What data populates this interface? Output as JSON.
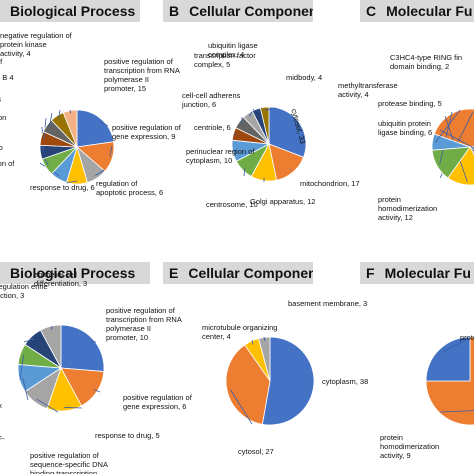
{
  "panels": [
    {
      "letter": "",
      "title": "Biological Process"
    },
    {
      "letter": "B",
      "title": "Cellular Component"
    },
    {
      "letter": "C",
      "title": "Molecular Fu"
    },
    {
      "letter": "",
      "title": "Biological Process"
    },
    {
      "letter": "E",
      "title": "Cellular Component"
    },
    {
      "letter": "F",
      "title": "Molecular Fu"
    }
  ],
  "colors": [
    "#4472c4",
    "#ed7d31",
    "#a5a5a5",
    "#ffc000",
    "#5b9bd5",
    "#70ad47",
    "#264478",
    "#9e480e",
    "#636363",
    "#997300",
    "#f4b183",
    "#9dc3e6"
  ],
  "chart_data": [
    {
      "type": "pie",
      "title": "Biological Process",
      "slices": [
        {
          "label": "positive regulation of transcription from RNA polymerase II promoter, 15",
          "value": 15
        },
        {
          "label": "positive regulation of gene expression, 9",
          "value": 9
        },
        {
          "label": "regulation of apoptotic process, 6",
          "value": 6
        },
        {
          "label": "response to drug, 6",
          "value": 6
        },
        {
          "label": "ion of",
          "value": 5
        },
        {
          "label": "io",
          "value": 5
        },
        {
          "label": "on",
          "value": 4
        },
        {
          "label": "4",
          "value": 4
        },
        {
          "label": "e B 4",
          "value": 4
        },
        {
          "label": "of",
          "value": 4
        },
        {
          "label": "negative regulation of protein kinase activity, 4",
          "value": 4
        }
      ]
    },
    {
      "type": "pie",
      "title": "Cellular Component",
      "slices": [
        {
          "label": "cytosol, 33",
          "value": 33
        },
        {
          "label": "mitochondrion, 17",
          "value": 17
        },
        {
          "label": "Golgi apparatus, 12",
          "value": 12
        },
        {
          "label": "centrosome, 10",
          "value": 10
        },
        {
          "label": "perinuclear region of cytoplasm, 10",
          "value": 10
        },
        {
          "label": "centriole, 6",
          "value": 6
        },
        {
          "label": "cell-cell adherens junction, 6",
          "value": 6
        },
        {
          "label": "transcription factor complex, 5",
          "value": 5
        },
        {
          "label": "ubiquitin ligase complex, 4",
          "value": 4
        },
        {
          "label": "midbody, 4",
          "value": 4
        }
      ]
    },
    {
      "type": "pie",
      "title": "Molecular Fu",
      "slices": [
        {
          "label": "protein homodimerization activity, 12",
          "value": 12
        },
        {
          "label": "ubiquitin protein ligase binding, 6",
          "value": 6
        },
        {
          "label": "protease binding, 5",
          "value": 5
        },
        {
          "label": "methyltransferase activity, 4",
          "value": 4
        },
        {
          "label": "C3HC4-type RING fin domain binding, 2",
          "value": 2
        }
      ]
    },
    {
      "type": "pie",
      "title": "Biological Process",
      "slices": [
        {
          "label": "positive regulation of transcription from RNA polymerase II promoter, 10",
          "value": 10
        },
        {
          "label": "positive regulation of gene expression, 6",
          "value": 6
        },
        {
          "label": "response to drug, 5",
          "value": 5
        },
        {
          "label": "positive regulation of sequence-specific DNA binding transcription factor activity, 4",
          "value": 4
        },
        {
          "label": "NF-",
          "value": 4
        },
        {
          "label": "rix",
          "value": 3
        },
        {
          "label": "regulation erine nction, 3",
          "value": 3
        },
        {
          "label": "epithelial cell differentiation, 3",
          "value": 3
        }
      ]
    },
    {
      "type": "pie",
      "title": "Cellular Component",
      "slices": [
        {
          "label": "cytoplasm, 38",
          "value": 38
        },
        {
          "label": "cytosol, 27",
          "value": 27
        },
        {
          "label": "microtubule organizing center, 4",
          "value": 4
        },
        {
          "label": "basement membrane, 3",
          "value": 3
        }
      ]
    },
    {
      "type": "pie",
      "title": "Molecular Fu",
      "slices": [
        {
          "label": "protein homodimerization activity, 9",
          "value": 9
        },
        {
          "label": "prote",
          "value": 3
        }
      ]
    }
  ]
}
